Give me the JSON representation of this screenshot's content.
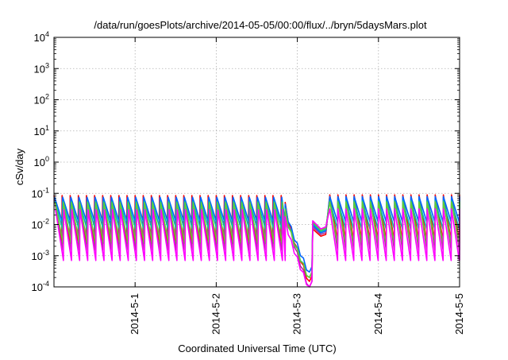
{
  "chart_data": {
    "type": "line",
    "title": "/data/run/goesPlots/archive/2014-05-05/00:00/flux/../bryn/5daysMars.plot",
    "xlabel": "Coordinated Universal Time (UTC)",
    "ylabel": "cSv/day",
    "y_scale": "log",
    "ylim": [
      0.0001,
      10000
    ],
    "xlim_days": [
      0,
      5
    ],
    "x_ticks": [
      {
        "label": "2014-5-1",
        "day": 1.0
      },
      {
        "label": "2014-5-2",
        "day": 2.0
      },
      {
        "label": "2014-5-3",
        "day": 3.0
      },
      {
        "label": "2014-5-4",
        "day": 4.0
      },
      {
        "label": "2014-5-5",
        "day": 5.0
      }
    ],
    "y_ticks": [
      {
        "base": "10",
        "exp": "-4",
        "value": 0.0001
      },
      {
        "base": "10",
        "exp": "-3",
        "value": 0.001
      },
      {
        "base": "10",
        "exp": "-2",
        "value": 0.01
      },
      {
        "base": "10",
        "exp": "-1",
        "value": 0.1
      },
      {
        "base": "10",
        "exp": "0",
        "value": 1
      },
      {
        "base": "10",
        "exp": "1",
        "value": 10
      },
      {
        "base": "10",
        "exp": "2",
        "value": 100
      },
      {
        "base": "10",
        "exp": "3",
        "value": 1000
      },
      {
        "base": "10",
        "exp": "4",
        "value": 10000
      }
    ],
    "grid": true,
    "legend": "none",
    "cycle_period_hours": 2.4,
    "series": [
      {
        "color": "#ff0000",
        "peak": 0.085,
        "trough": 0.003,
        "dip_min": 0.00015
      },
      {
        "color": "#aa3399",
        "peak": 0.07,
        "trough": 0.0015,
        "dip_min": 0.0001
      },
      {
        "color": "#0066ff",
        "peak": 0.075,
        "trough": 0.012,
        "dip_min": 0.0003
      },
      {
        "color": "#00bbaa",
        "peak": 0.055,
        "trough": 0.007,
        "dip_min": 0.0002
      },
      {
        "color": "#66cc33",
        "peak": 0.05,
        "trough": 0.0025,
        "dip_min": 0.0002
      },
      {
        "color": "#ff00ff",
        "peak": 0.03,
        "trough": 0.0007,
        "dip_min": 0.0001
      }
    ],
    "storm": {
      "start_day": 2.85,
      "low_day": 3.15,
      "recover_day": 3.18,
      "post_level": 0.012,
      "resume_day": 3.35
    }
  }
}
